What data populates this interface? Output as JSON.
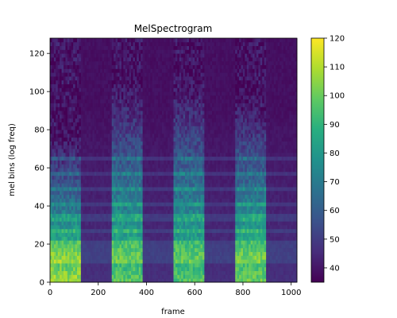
{
  "chart_data": {
    "type": "heatmap",
    "title": "MelSpectrogram",
    "xlabel": "frame",
    "ylabel": "mel bins (log freq)",
    "xlim": [
      0,
      1024
    ],
    "ylim": [
      0,
      128
    ],
    "x_ticks": [
      0,
      200,
      400,
      600,
      800,
      1000
    ],
    "y_ticks": [
      0,
      20,
      40,
      60,
      80,
      100,
      120
    ],
    "colormap": "viridis",
    "colorbar": {
      "range": [
        35,
        120
      ],
      "ticks": [
        40,
        50,
        60,
        70,
        80,
        90,
        100,
        110,
        120
      ]
    },
    "silence_value": 37,
    "segments": [
      {
        "start": 0,
        "end": 128,
        "kind": "voiced",
        "top_bin": 82,
        "max_value": 108
      },
      {
        "start": 128,
        "end": 256,
        "kind": "silence"
      },
      {
        "start": 256,
        "end": 384,
        "kind": "voiced",
        "top_bin": 112,
        "max_value": 98
      },
      {
        "start": 384,
        "end": 512,
        "kind": "silence"
      },
      {
        "start": 512,
        "end": 640,
        "kind": "voiced",
        "top_bin": 115,
        "max_value": 96
      },
      {
        "start": 640,
        "end": 768,
        "kind": "silence"
      },
      {
        "start": 768,
        "end": 896,
        "kind": "voiced",
        "top_bin": 104,
        "max_value": 100
      },
      {
        "start": 896,
        "end": 1024,
        "kind": "silence"
      }
    ],
    "horizontal_bands_bins": [
      11,
      15,
      19,
      26,
      33,
      40,
      48,
      56,
      64
    ]
  }
}
